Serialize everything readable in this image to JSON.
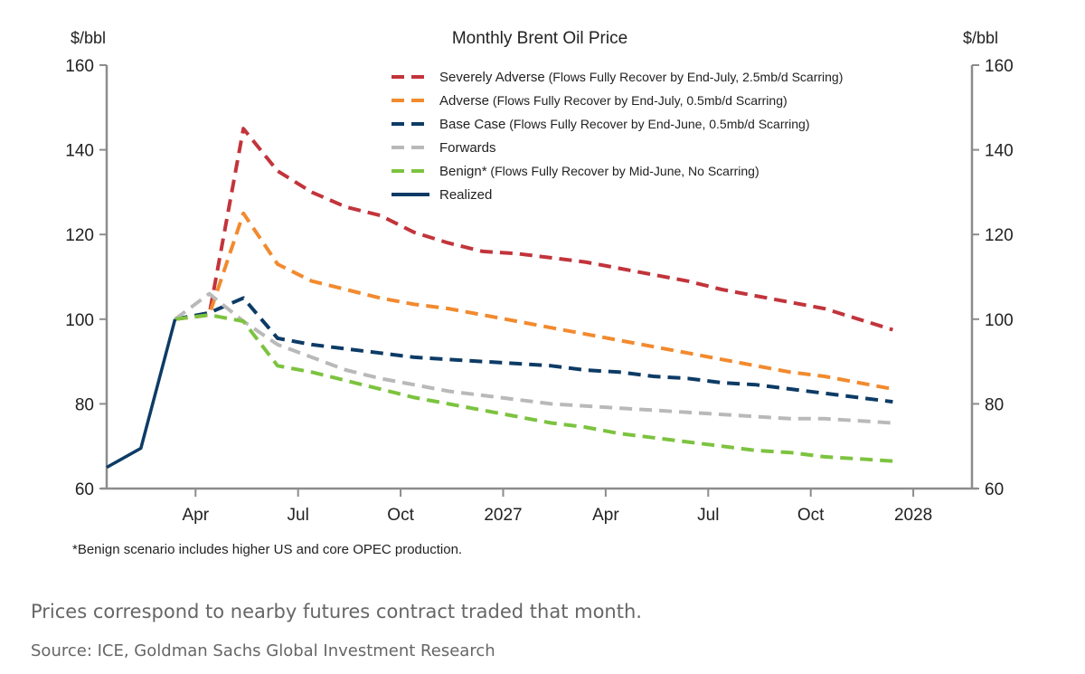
{
  "chart_data": {
    "type": "line",
    "title": "Monthly Brent Oil Price",
    "ylabel_left": "$/bbl",
    "ylabel_right": "$/bbl",
    "ylim": [
      60,
      160
    ],
    "yticks": [
      60,
      80,
      100,
      120,
      140,
      160
    ],
    "x": [
      "Jan 2026",
      "Feb 2026",
      "Mar 2026",
      "Apr 2026",
      "May 2026",
      "Jun 2026",
      "Jul 2026",
      "Aug 2026",
      "Sep 2026",
      "Oct 2026",
      "Nov 2026",
      "Dec 2026",
      "Jan 2027",
      "Feb 2027",
      "Mar 2027",
      "Apr 2027",
      "May 2027",
      "Jun 2027",
      "Jul 2027",
      "Aug 2027",
      "Sep 2027",
      "Oct 2027",
      "Nov 2027",
      "Dec 2027"
    ],
    "xticks": [
      {
        "label": "Apr",
        "month": 3
      },
      {
        "label": "Jul",
        "month": 6
      },
      {
        "label": "Oct",
        "month": 9
      },
      {
        "label": "2027",
        "month": 12
      },
      {
        "label": "Apr",
        "month": 15
      },
      {
        "label": "Jul",
        "month": 18
      },
      {
        "label": "Oct",
        "month": 21
      },
      {
        "label": "2028",
        "month": 24
      }
    ],
    "grid": false,
    "legend_position": "top-right",
    "series": [
      {
        "name": "Severely Adverse",
        "desc": "(Flows Fully Recover by End-July, 2.5mb/d Scarring)",
        "color": "#c2343b",
        "dashed": true,
        "values": [
          null,
          null,
          100,
          101,
          145,
          135,
          130,
          126.5,
          124.5,
          120.5,
          118,
          116,
          115.5,
          114.5,
          113.5,
          112,
          110.5,
          109,
          107,
          105.5,
          104,
          102.5,
          100,
          97.5
        ]
      },
      {
        "name": "Adverse",
        "desc": "(Flows Fully Recover by End-July, 0.5mb/d Scarring)",
        "color": "#f28a2e",
        "dashed": true,
        "values": [
          null,
          null,
          100,
          101,
          125,
          113,
          109,
          107,
          105,
          103.5,
          102.5,
          101,
          99.5,
          98,
          96.5,
          95,
          93.5,
          92,
          90.5,
          89,
          87.5,
          86.5,
          85,
          83.5
        ]
      },
      {
        "name": "Base Case",
        "desc": "(Flows Fully Recover by End-June, 0.5mb/d Scarring)",
        "color": "#0d3b66",
        "dashed": true,
        "values": [
          null,
          null,
          100,
          101.5,
          105,
          95.5,
          94,
          93,
          92,
          91,
          90.5,
          90,
          89.5,
          89,
          88,
          87.5,
          86.5,
          86,
          85,
          84.5,
          83.5,
          82.5,
          81.5,
          80.5
        ]
      },
      {
        "name": "Forwards",
        "desc": "",
        "color": "#b9b9b9",
        "dashed": true,
        "values": [
          null,
          null,
          100,
          106,
          99.5,
          94,
          91,
          88,
          86,
          84.5,
          83,
          82,
          81,
          80,
          79.5,
          79,
          78.5,
          78,
          77.5,
          77,
          76.5,
          76.5,
          76,
          75.5
        ]
      },
      {
        "name": "Benign*",
        "desc": "(Flows Fully Recover by Mid-June, No Scarring)",
        "color": "#7cc33f",
        "dashed": true,
        "values": [
          null,
          null,
          100,
          101,
          99.5,
          89,
          87.5,
          85.5,
          83.5,
          81.5,
          80,
          78.5,
          77,
          75.5,
          74.5,
          73,
          72,
          71,
          70,
          69,
          68.5,
          67.5,
          67,
          66.5
        ]
      },
      {
        "name": "Realized",
        "desc": "",
        "color": "#0d3b66",
        "dashed": false,
        "values": [
          65,
          69.5,
          100,
          null,
          null,
          null,
          null,
          null,
          null,
          null,
          null,
          null,
          null,
          null,
          null,
          null,
          null,
          null,
          null,
          null,
          null,
          null,
          null,
          null
        ]
      }
    ],
    "footnote": "*Benign scenario includes higher US and core OPEC production."
  },
  "caption": "Prices correspond to nearby futures contract traded that month.",
  "source": "Source: ICE, Goldman Sachs Global Investment Research"
}
